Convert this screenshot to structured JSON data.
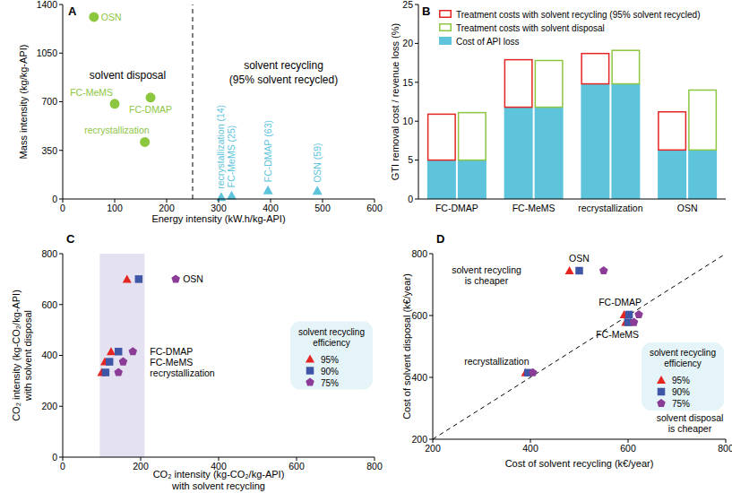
{
  "chart_data": [
    {
      "panel": "A",
      "type": "scatter",
      "x_label": "Energy intensity (kW.h/kg-API)",
      "y_label": "Mass intensity (kg/kg-API)",
      "xlim": [
        0,
        600
      ],
      "ylim": [
        0,
        1400
      ],
      "xticks": [
        0,
        100,
        200,
        300,
        400,
        500,
        600
      ],
      "yticks": [
        0,
        350,
        700,
        1050,
        1400
      ],
      "reference_line": {
        "x": [
          250,
          250
        ],
        "values": [
          0,
          1400
        ],
        "line_style": "dashed"
      },
      "series": [
        {
          "name": "solvent disposal",
          "color": "#8dc63f",
          "marker": "circle",
          "x": [
            60,
            100,
            169,
            158
          ],
          "values": [
            1310,
            685,
            730,
            410
          ],
          "point_labels": [
            "OSN",
            "FC-MeMS",
            "FC-DMAP",
            "recrystallization"
          ]
        },
        {
          "name": "solvent recycling (95% solvent recycled)",
          "color": "#5ec4dc",
          "marker": "triangle",
          "x": [
            305,
            325,
            395,
            490
          ],
          "values": [
            14,
            25,
            63,
            59
          ],
          "point_labels": [
            "recrystallization (14)",
            "FC-MeMS (25)",
            "FC-DMAP (63)",
            "OSN (59)"
          ]
        }
      ]
    },
    {
      "panel": "B",
      "type": "bar",
      "stacked": true,
      "legend": "upper left",
      "y_label": "GTI removal cost / revenue loss (%)",
      "categories": [
        "FC-DMAP",
        "FC-MeMS",
        "recrystallization",
        "OSN"
      ],
      "ylim": [
        0,
        25
      ],
      "yticks": [
        0,
        5,
        10,
        15,
        20,
        25
      ],
      "series": [
        {
          "name": "Cost of API loss",
          "color": "#5ec4dc",
          "values": [
            5.0,
            11.8,
            14.8,
            6.3
          ]
        },
        {
          "name": "Treatment costs with solvent recycling (95% solvent recycled)",
          "color": "#e52521",
          "values": [
            5.9,
            6.1,
            3.9,
            4.9
          ]
        },
        {
          "name": "Treatment costs with solvent disposal",
          "color": "#8dc63f",
          "values": [
            6.1,
            6.0,
            4.3,
            7.7
          ]
        }
      ]
    },
    {
      "panel": "C",
      "type": "scatter",
      "legend": "right",
      "x_label": [
        "CO₂ intensity (kg-CO₂/kg-API)",
        "with solvent recycling"
      ],
      "y_label": [
        "CO₂ intensity (kg-CO₂/kg-API)",
        "with solvent disposal"
      ],
      "xlim": [
        0,
        800
      ],
      "ylim": [
        0,
        800
      ],
      "xticks": [
        0,
        200,
        400,
        600,
        800
      ],
      "yticks": [
        0,
        200,
        400,
        600,
        800
      ],
      "highlight_x": [
        95,
        210
      ],
      "legend_title": [
        "solvent recycling",
        "efficiency"
      ],
      "point_labels": [
        "OSN",
        "FC-DMAP",
        "FC-MeMS",
        "recrystallization"
      ],
      "series": [
        {
          "name": "95%",
          "color": "#e52521",
          "marker": "triangle",
          "x": [
            165,
            124,
            108,
            100
          ],
          "values": [
            700,
            415,
            375,
            333
          ]
        },
        {
          "name": "90%",
          "color": "#3f55a5",
          "marker": "square",
          "x": [
            195,
            143,
            120,
            110
          ],
          "values": [
            700,
            415,
            375,
            333
          ]
        },
        {
          "name": "75%",
          "color": "#8b3c96",
          "marker": "pentagon",
          "x": [
            290,
            180,
            155,
            143
          ],
          "values": [
            700,
            415,
            375,
            333
          ]
        }
      ]
    },
    {
      "panel": "D",
      "type": "scatter",
      "legend": "lower right",
      "x_label": "Cost of solvent recycling (k€/year)",
      "y_label": "Cost of solvent disposal (k€/year)",
      "xlim": [
        200,
        800
      ],
      "ylim": [
        200,
        800
      ],
      "xticks": [
        200,
        400,
        600,
        800
      ],
      "yticks": [
        200,
        400,
        600,
        800
      ],
      "reference_line": {
        "x": [
          200,
          800
        ],
        "values": [
          200,
          800
        ],
        "line_style": "dashed"
      },
      "region_labels": [
        [
          "solvent recycling",
          "is cheaper"
        ],
        [
          "solvent disposal",
          "is cheaper"
        ]
      ],
      "legend_title": [
        "solvent recycling",
        "efficiency"
      ],
      "point_labels": [
        "OSN",
        "FC-DMAP",
        "FC-MeMS",
        "recrystallization"
      ],
      "series": [
        {
          "name": "95%",
          "color": "#e52521",
          "marker": "triangle",
          "x": [
            480,
            592,
            595,
            390
          ],
          "values": [
            745,
            603,
            578,
            415
          ]
        },
        {
          "name": "90%",
          "color": "#3f55a5",
          "marker": "square",
          "x": [
            500,
            602,
            600,
            395
          ],
          "values": [
            745,
            603,
            578,
            415
          ]
        },
        {
          "name": "75%",
          "color": "#8b3c96",
          "marker": "pentagon",
          "x": [
            550,
            622,
            612,
            405
          ],
          "values": [
            745,
            603,
            578,
            415
          ]
        }
      ]
    }
  ]
}
